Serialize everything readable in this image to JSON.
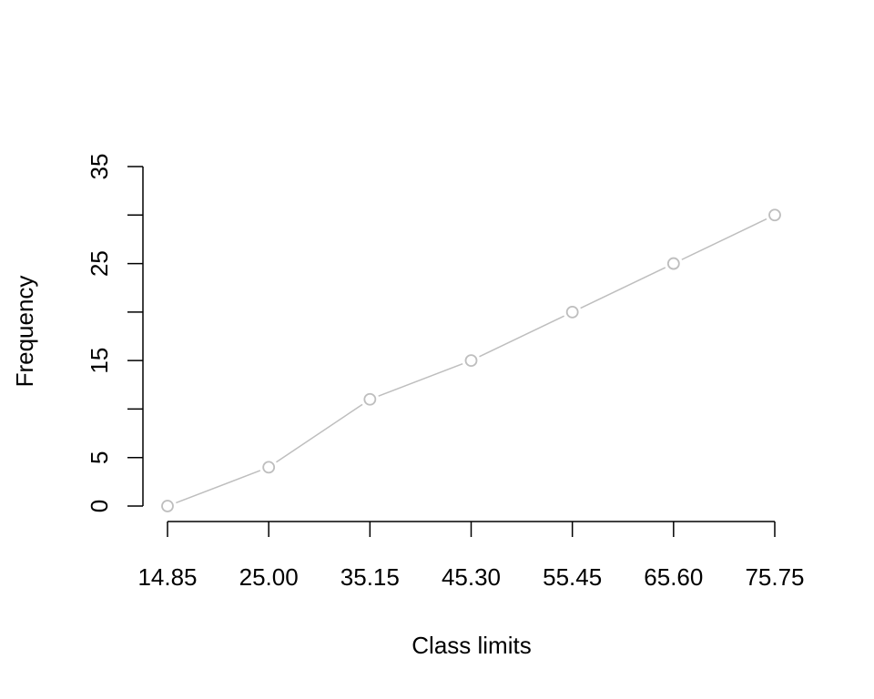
{
  "chart_data": {
    "type": "line",
    "title": "",
    "xlabel": "Class limits",
    "ylabel": "Frequency",
    "x": [
      14.85,
      25.0,
      35.15,
      45.3,
      55.45,
      65.6,
      75.75
    ],
    "x_tick_labels": [
      "14.85",
      "25.00",
      "35.15",
      "45.30",
      "55.45",
      "65.60",
      "75.75"
    ],
    "series": [
      {
        "values": [
          0,
          4,
          11,
          15,
          20,
          25,
          30
        ]
      }
    ],
    "ylim": [
      0,
      35
    ],
    "y_ticks": [
      0,
      5,
      10,
      15,
      20,
      25,
      30,
      35
    ],
    "y_tick_labels": [
      "0",
      "5",
      "",
      "15",
      "",
      "25",
      "",
      "35"
    ],
    "grid": false,
    "legend": "none",
    "colors": {
      "series": "#bebebe",
      "axis": "#000000"
    }
  }
}
